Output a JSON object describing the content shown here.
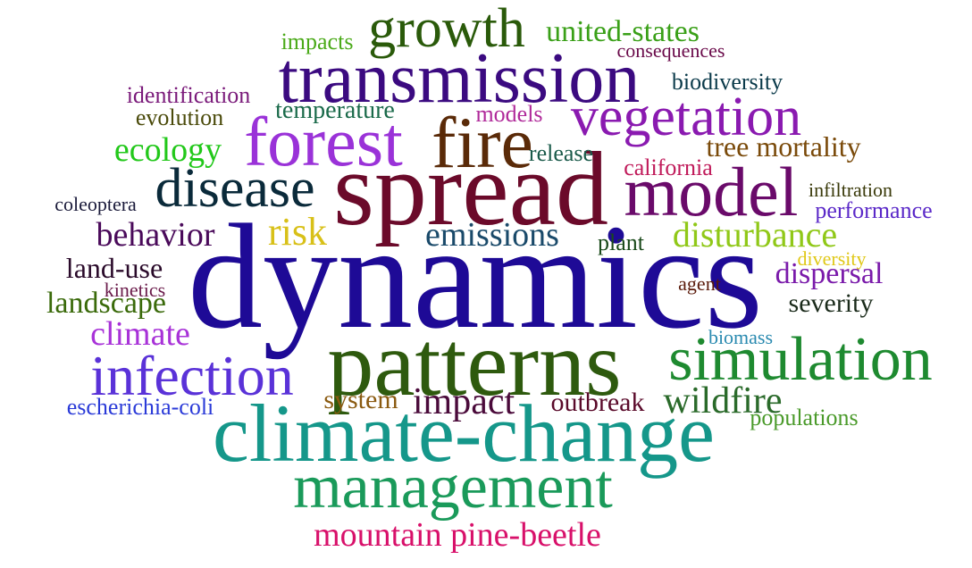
{
  "words": [
    {
      "text": "dynamics",
      "color": "#1e0a96"
    },
    {
      "text": "patterns",
      "color": "#2e5a0e"
    },
    {
      "text": "climate-change",
      "color": "#15978a"
    },
    {
      "text": "spread",
      "color": "#6b0a2a"
    },
    {
      "text": "transmission",
      "color": "#3b0a80"
    },
    {
      "text": "management",
      "color": "#1a9a5a"
    },
    {
      "text": "forest",
      "color": "#9a32d8"
    },
    {
      "text": "fire",
      "color": "#5a2a08"
    },
    {
      "text": "model",
      "color": "#6a0a6a"
    },
    {
      "text": "simulation",
      "color": "#1e8a30"
    },
    {
      "text": "infection",
      "color": "#5a32d8"
    },
    {
      "text": "vegetation",
      "color": "#8a1ab0"
    },
    {
      "text": "growth",
      "color": "#2a5a0a"
    },
    {
      "text": "disease",
      "color": "#0a2a3a"
    },
    {
      "text": "wildfire",
      "color": "#2a6a2a"
    },
    {
      "text": "mountain pine-beetle",
      "color": "#d8106a"
    },
    {
      "text": "impact",
      "color": "#4a0a3a"
    },
    {
      "text": "risk",
      "color": "#d8c018"
    },
    {
      "text": "ecology",
      "color": "#22c81a"
    },
    {
      "text": "disturbance",
      "color": "#90c818"
    },
    {
      "text": "emissions",
      "color": "#1a4a6a"
    },
    {
      "text": "behavior",
      "color": "#4a0a5a"
    },
    {
      "text": "climate",
      "color": "#a832d8"
    },
    {
      "text": "landscape",
      "color": "#3a6a0a"
    },
    {
      "text": "dispersal",
      "color": "#7a1aaa"
    },
    {
      "text": "tree mortality",
      "color": "#7a4a0a"
    },
    {
      "text": "land-use",
      "color": "#2a0a2a"
    },
    {
      "text": "united-states",
      "color": "#3aa018"
    },
    {
      "text": "outbreak",
      "color": "#5a0a2a"
    },
    {
      "text": "severity",
      "color": "#1a2a1a"
    },
    {
      "text": "system",
      "color": "#8a5a10"
    },
    {
      "text": "temperature",
      "color": "#1a6a4a"
    },
    {
      "text": "populations",
      "color": "#4a9a2a"
    },
    {
      "text": "biodiversity",
      "color": "#0a3a4a"
    },
    {
      "text": "escherichia-coli",
      "color": "#2a3ad8"
    },
    {
      "text": "identification",
      "color": "#7a1a7a"
    },
    {
      "text": "performance",
      "color": "#5a28c8"
    },
    {
      "text": "evolution",
      "color": "#4a4a0a"
    },
    {
      "text": "release",
      "color": "#1a5a4a"
    },
    {
      "text": "california",
      "color": "#c01a5a"
    },
    {
      "text": "impacts",
      "color": "#4aaa18"
    },
    {
      "text": "plant",
      "color": "#1a4a1a"
    },
    {
      "text": "models",
      "color": "#b02a9a"
    },
    {
      "text": "infiltration",
      "color": "#3a3a0a"
    },
    {
      "text": "coleoptera",
      "color": "#1a1a3a"
    },
    {
      "text": "consequences",
      "color": "#6a0a4a"
    },
    {
      "text": "kinetics",
      "color": "#6a1a4a"
    },
    {
      "text": "biomass",
      "color": "#2a8ab0"
    },
    {
      "text": "diversity",
      "color": "#e0c818"
    },
    {
      "text": "agent",
      "color": "#5a1a0a"
    }
  ]
}
